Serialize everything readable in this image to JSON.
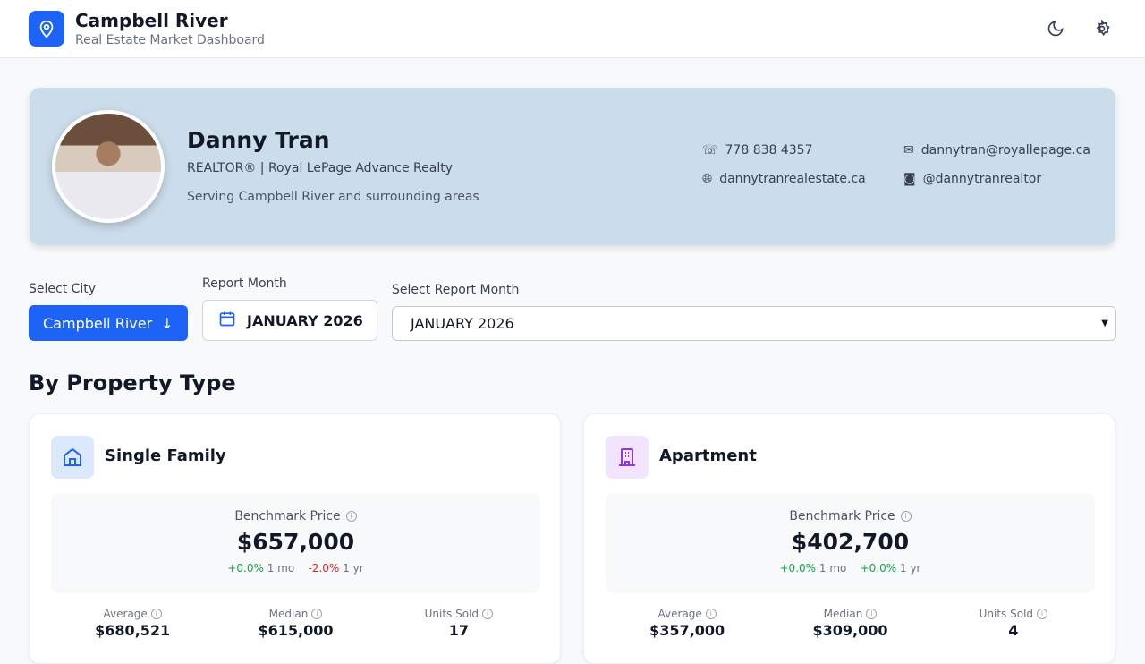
{
  "header": {
    "title": "Campbell River",
    "subtitle": "Real Estate Market Dashboard"
  },
  "profile": {
    "name": "Danny Tran",
    "role": "REALTOR® | Royal LePage Advance Realty",
    "area": "Serving Campbell River and surrounding areas",
    "phone": "778 838 4357",
    "email": "dannytran@royallepage.ca",
    "website": "dannytranrealestate.ca",
    "instagram": "@dannytranrealtor"
  },
  "controls": {
    "city_label": "Select City",
    "city_value": "Campbell River",
    "month_label": "Report Month",
    "month_value": "JANUARY 2026",
    "select_label": "Select Report Month",
    "select_value": "JANUARY 2026"
  },
  "section_title": "By Property Type",
  "cards": [
    {
      "title": "Single Family",
      "bench_label": "Benchmark Price",
      "bench_value": "$657,000",
      "mo_change": "+0.0%",
      "mo_label": "1 mo",
      "yr_change": "-2.0%",
      "yr_label": "1 yr",
      "stats": [
        {
          "label": "Average",
          "value": "$680,521"
        },
        {
          "label": "Median",
          "value": "$615,000"
        },
        {
          "label": "Units Sold",
          "value": "17"
        }
      ]
    },
    {
      "title": "Apartment",
      "bench_label": "Benchmark Price",
      "bench_value": "$402,700",
      "mo_change": "+0.0%",
      "mo_label": "1 mo",
      "yr_change": "+0.0%",
      "yr_label": "1 yr",
      "stats": [
        {
          "label": "Average",
          "value": "$357,000"
        },
        {
          "label": "Median",
          "value": "$309,000"
        },
        {
          "label": "Units Sold",
          "value": "4"
        }
      ]
    }
  ]
}
